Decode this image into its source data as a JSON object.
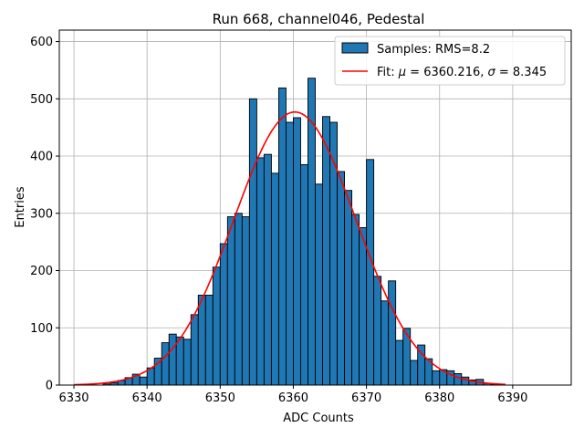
{
  "chart_data": {
    "type": "bar",
    "title": "Run 668, channel046, Pedestal",
    "xlabel": "ADC Counts",
    "ylabel": "Entries",
    "xlim": [
      6328,
      6398
    ],
    "ylim": [
      0,
      620
    ],
    "x_ticks": [
      "6330",
      "6340",
      "6350",
      "6360",
      "6370",
      "6380",
      "6390"
    ],
    "x_tick_values": [
      6330,
      6340,
      6350,
      6360,
      6370,
      6380,
      6390
    ],
    "y_ticks": [
      "0",
      "100",
      "200",
      "300",
      "400",
      "500",
      "600"
    ],
    "y_tick_values": [
      0,
      100,
      200,
      300,
      400,
      500,
      600
    ],
    "grid": true,
    "legend_position": "top-right",
    "histogram": {
      "name": "Samples: RMS=8.2",
      "color": "#1f77b4",
      "edgecolor": "#000000",
      "bin_start": 6330,
      "bin_width": 1,
      "values": [
        0,
        0,
        0,
        0,
        2,
        4,
        8,
        13,
        19,
        14,
        30,
        47,
        74,
        89,
        84,
        80,
        123,
        157,
        157,
        206,
        247,
        294,
        300,
        294,
        500,
        397,
        403,
        370,
        519,
        459,
        467,
        385,
        536,
        351,
        469,
        459,
        373,
        340,
        298,
        275,
        394,
        190,
        147,
        182,
        78,
        99,
        43,
        70,
        46,
        25,
        27,
        25,
        20,
        14,
        9,
        10,
        3,
        1,
        0,
        0
      ]
    },
    "fit": {
      "name": "Fit: μ = 6360.216, σ = 8.345",
      "legend_parts": [
        "Fit: ",
        "μ",
        " = 6360.216, ",
        "σ",
        " = 8.345"
      ],
      "color": "#ff0000",
      "mu": 6360.216,
      "sigma": 8.345,
      "amplitude": 477,
      "x_range": [
        6330,
        6389
      ]
    }
  }
}
